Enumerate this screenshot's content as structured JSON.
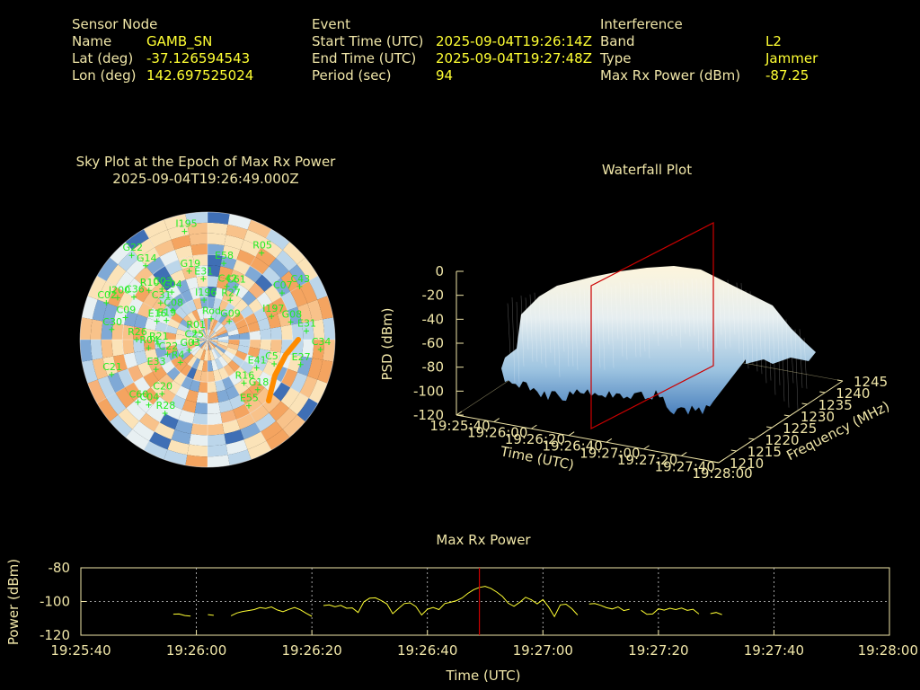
{
  "header": {
    "sensor": {
      "title": "Sensor Node",
      "rows": [
        {
          "label": "Name",
          "value": "GAMB_SN"
        },
        {
          "label": "Lat (deg)",
          "value": "-37.126594543"
        },
        {
          "label": "Lon (deg)",
          "value": "142.697525024"
        }
      ]
    },
    "event": {
      "title": "Event",
      "rows": [
        {
          "label": "Start Time (UTC)",
          "value": "2025-09-04T19:26:14Z"
        },
        {
          "label": "End Time (UTC)",
          "value": "2025-09-04T19:27:48Z"
        },
        {
          "label": "Period (sec)",
          "value": "94"
        }
      ]
    },
    "interference": {
      "title": "Interference",
      "rows": [
        {
          "label": "Band",
          "value": "L2"
        },
        {
          "label": "Type",
          "value": "Jammer"
        },
        {
          "label": "Max Rx Power (dBm)",
          "value": "-87.25"
        }
      ]
    }
  },
  "colors": {
    "text": "#f0e6a8",
    "value": "#ffff33",
    "satellite": "#22ee22",
    "marker": "#cc0000",
    "jammer_track": "#ff8c00",
    "power_line": "#ffff33"
  },
  "chart_data": [
    {
      "type": "scatter",
      "name": "sky-plot",
      "title": "Sky Plot at the Epoch of Max Rx Power",
      "subtitle": "2025-09-04T19:26:49.000Z",
      "satellites": [
        {
          "id": "G22",
          "az": 318,
          "el": 10
        },
        {
          "id": "I195",
          "az": 348,
          "el": 12
        },
        {
          "id": "E58",
          "az": 12,
          "el": 35
        },
        {
          "id": "R05",
          "az": 32,
          "el": 18
        },
        {
          "id": "G14",
          "az": 320,
          "el": 22
        },
        {
          "id": "G19",
          "az": 345,
          "el": 40
        },
        {
          "id": "E31",
          "az": 356,
          "el": 47
        },
        {
          "id": "C42",
          "az": 20,
          "el": 50
        },
        {
          "id": "C61",
          "az": 28,
          "el": 48
        },
        {
          "id": "R10",
          "az": 310,
          "el": 36
        },
        {
          "id": "C03",
          "az": 318,
          "el": 42
        },
        {
          "id": "C04",
          "az": 323,
          "el": 48
        },
        {
          "id": "J200",
          "az": 295,
          "el": 20
        },
        {
          "id": "I196",
          "az": 355,
          "el": 62
        },
        {
          "id": "R27",
          "az": 30,
          "el": 58
        },
        {
          "id": "C43",
          "az": 60,
          "el": 15
        },
        {
          "id": "C07",
          "az": 58,
          "el": 28
        },
        {
          "id": "I197",
          "az": 70,
          "el": 42
        },
        {
          "id": "G08",
          "az": 78,
          "el": 30
        },
        {
          "id": "C02",
          "az": 290,
          "el": 14
        },
        {
          "id": "C36",
          "az": 300,
          "el": 30
        },
        {
          "id": "C31",
          "az": 308,
          "el": 48
        },
        {
          "id": "C08",
          "az": 310,
          "el": 58
        },
        {
          "id": "Rod",
          "az": 10,
          "el": 75
        },
        {
          "id": "G09",
          "az": 50,
          "el": 70
        },
        {
          "id": "C09",
          "az": 285,
          "el": 30
        },
        {
          "id": "E16",
          "az": 290,
          "el": 52
        },
        {
          "id": "E19",
          "az": 295,
          "el": 58
        },
        {
          "id": "E31",
          "az": 85,
          "el": 20
        },
        {
          "id": "C30",
          "az": 276,
          "el": 22
        },
        {
          "id": "R26",
          "az": 270,
          "el": 40
        },
        {
          "id": "R21",
          "az": 265,
          "el": 55
        },
        {
          "id": "R04",
          "az": 262,
          "el": 48
        },
        {
          "id": "C22",
          "az": 250,
          "el": 60
        },
        {
          "id": "R01",
          "az": 300,
          "el": 80
        },
        {
          "id": "C25",
          "az": 260,
          "el": 80
        },
        {
          "id": "G03",
          "az": 240,
          "el": 75
        },
        {
          "id": "R4",
          "az": 230,
          "el": 65
        },
        {
          "id": "E27",
          "az": 105,
          "el": 22
        },
        {
          "id": "E41",
          "az": 120,
          "el": 50
        },
        {
          "id": "C5",
          "az": 110,
          "el": 40
        },
        {
          "id": "C34",
          "az": 95,
          "el": 10
        },
        {
          "id": "R16",
          "az": 140,
          "el": 50
        },
        {
          "id": "E55",
          "az": 148,
          "el": 35
        },
        {
          "id": "G18",
          "az": 135,
          "el": 40
        },
        {
          "id": "E33",
          "az": 240,
          "el": 48
        },
        {
          "id": "C21",
          "az": 250,
          "el": 18
        },
        {
          "id": "C20",
          "az": 220,
          "el": 40
        },
        {
          "id": "R28",
          "az": 210,
          "el": 30
        },
        {
          "id": "C60",
          "az": 228,
          "el": 24
        },
        {
          "id": "C04",
          "az": 222,
          "el": 28
        }
      ]
    },
    {
      "type": "area",
      "name": "waterfall-plot",
      "title": "Waterfall Plot",
      "xlabel": "Time (UTC)",
      "ylabel": "Frequency (MHz)",
      "zlabel": "PSD (dBm)",
      "x_ticks": [
        "19:25:40",
        "19:26:00",
        "19:26:20",
        "19:26:40",
        "19:27:00",
        "19:27:20",
        "19:27:40",
        "19:28:00"
      ],
      "y_ticks": [
        "1210",
        "1215",
        "1220",
        "1225",
        "1230",
        "1235",
        "1240",
        "1245"
      ],
      "z_ticks": [
        "0",
        "-20",
        "-40",
        "-60",
        "-80",
        "-100",
        "-120"
      ],
      "xlim": [
        "19:25:40",
        "19:28:00"
      ],
      "ylim": [
        1210,
        1245
      ],
      "zlim": [
        -120,
        0
      ],
      "marker_time": "19:26:49"
    },
    {
      "type": "line",
      "name": "max-rx-power",
      "title": "Max Rx Power",
      "xlabel": "Time (UTC)",
      "ylabel": "Power (dBm)",
      "x_ticks": [
        "19:25:40",
        "19:26:00",
        "19:26:20",
        "19:26:40",
        "19:27:00",
        "19:27:20",
        "19:27:40",
        "19:28:00"
      ],
      "y_ticks": [
        "-80",
        "-100",
        "-120"
      ],
      "xlim": [
        "19:25:40",
        "19:28:00"
      ],
      "ylim": [
        -120,
        -80
      ],
      "grid": true,
      "marker_time": "19:26:49",
      "segments": [
        [
          [
            "19:25:56",
            -107.5
          ],
          [
            "19:25:57",
            -107.4
          ],
          [
            "19:25:58",
            -108.3
          ],
          [
            "19:25:59",
            -108.7
          ]
        ],
        [
          [
            "19:26:02",
            -107.8
          ],
          [
            "19:26:03",
            -108.2
          ]
        ],
        [
          [
            "19:26:06",
            -108.5
          ],
          [
            "19:26:07",
            -106.8
          ],
          [
            "19:26:08",
            -105.9
          ],
          [
            "19:26:09",
            -105.4
          ],
          [
            "19:26:10",
            -104.8
          ],
          [
            "19:26:11",
            -103.6
          ],
          [
            "19:26:12",
            -104.1
          ],
          [
            "19:26:13",
            -103.2
          ],
          [
            "19:26:14",
            -105.0
          ],
          [
            "19:26:15",
            -106.1
          ],
          [
            "19:26:16",
            -104.7
          ],
          [
            "19:26:17",
            -103.5
          ],
          [
            "19:26:18",
            -104.9
          ],
          [
            "19:26:19",
            -107.0
          ],
          [
            "19:26:20",
            -108.8
          ]
        ],
        [
          [
            "19:26:22",
            -102.4
          ],
          [
            "19:26:23",
            -102.0
          ],
          [
            "19:26:24",
            -103.1
          ],
          [
            "19:26:25",
            -102.3
          ],
          [
            "19:26:26",
            -104.0
          ],
          [
            "19:26:27",
            -103.8
          ],
          [
            "19:26:28",
            -106.5
          ],
          [
            "19:26:29",
            -100.2
          ],
          [
            "19:26:30",
            -98.0
          ],
          [
            "19:26:31",
            -97.8
          ],
          [
            "19:26:32",
            -99.4
          ],
          [
            "19:26:33",
            -101.5
          ],
          [
            "19:26:34",
            -107.2
          ],
          [
            "19:26:35",
            -104.1
          ],
          [
            "19:26:36",
            -101.2
          ],
          [
            "19:26:37",
            -100.8
          ],
          [
            "19:26:38",
            -103.0
          ],
          [
            "19:26:39",
            -108.0
          ],
          [
            "19:26:40",
            -104.6
          ],
          [
            "19:26:41",
            -103.5
          ],
          [
            "19:26:42",
            -104.8
          ],
          [
            "19:26:43",
            -101.2
          ],
          [
            "19:26:44",
            -100.5
          ],
          [
            "19:26:45",
            -99.5
          ],
          [
            "19:26:46",
            -97.9
          ],
          [
            "19:26:47",
            -95.2
          ],
          [
            "19:26:48",
            -93.0
          ],
          [
            "19:26:49",
            -91.6
          ],
          [
            "19:26:50",
            -91.0
          ],
          [
            "19:26:51",
            -92.2
          ],
          [
            "19:26:52",
            -94.4
          ],
          [
            "19:26:53",
            -97.0
          ],
          [
            "19:26:54",
            -101.0
          ],
          [
            "19:26:55",
            -102.8
          ],
          [
            "19:26:56",
            -100.4
          ],
          [
            "19:26:57",
            -97.5
          ],
          [
            "19:26:58",
            -99.0
          ],
          [
            "19:26:59",
            -101.4
          ],
          [
            "19:27:00",
            -98.8
          ],
          [
            "19:27:01",
            -103.3
          ],
          [
            "19:27:02",
            -108.9
          ],
          [
            "19:27:03",
            -102.0
          ],
          [
            "19:27:04",
            -101.6
          ],
          [
            "19:27:05",
            -104.2
          ],
          [
            "19:27:06",
            -108.0
          ]
        ],
        [
          [
            "19:27:08",
            -101.5
          ],
          [
            "19:27:09",
            -101.2
          ],
          [
            "19:27:10",
            -102.3
          ],
          [
            "19:27:11",
            -103.7
          ],
          [
            "19:27:12",
            -104.4
          ],
          [
            "19:27:13",
            -103.2
          ],
          [
            "19:27:14",
            -105.4
          ],
          [
            "19:27:15",
            -104.6
          ]
        ],
        [
          [
            "19:27:17",
            -105.2
          ],
          [
            "19:27:18",
            -107.6
          ],
          [
            "19:27:19",
            -107.4
          ],
          [
            "19:27:20",
            -104.3
          ],
          [
            "19:27:21",
            -105.1
          ],
          [
            "19:27:22",
            -104.0
          ],
          [
            "19:27:23",
            -104.8
          ],
          [
            "19:27:24",
            -103.9
          ],
          [
            "19:27:25",
            -105.3
          ],
          [
            "19:27:26",
            -104.6
          ],
          [
            "19:27:27",
            -107.4
          ]
        ],
        [
          [
            "19:27:29",
            -107.2
          ],
          [
            "19:27:30",
            -106.5
          ],
          [
            "19:27:31",
            -107.8
          ]
        ]
      ]
    }
  ]
}
